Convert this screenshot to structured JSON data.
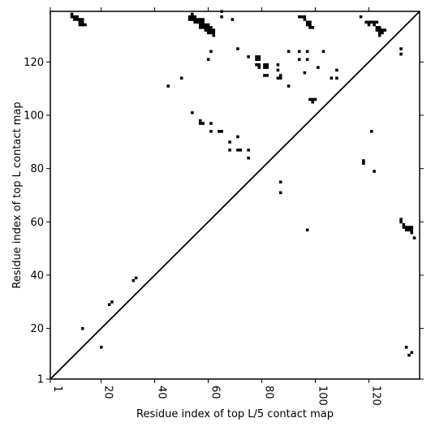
{
  "chart_data": {
    "type": "scatter",
    "xlabel": "Residue index of top L/5 contact map",
    "ylabel": "Residue index of top L contact map",
    "xlim": [
      1,
      139
    ],
    "ylim": [
      1,
      139
    ],
    "x_ticks": [
      1,
      20,
      40,
      60,
      80,
      100,
      120
    ],
    "y_ticks": [
      1,
      20,
      40,
      60,
      80,
      100,
      120
    ],
    "grid": false,
    "diagonal": true,
    "series": [
      {
        "marker": "square",
        "color": "#000000",
        "points": [
          [
            9,
            138
          ],
          [
            9,
            137
          ],
          [
            10,
            137
          ],
          [
            10,
            136
          ],
          [
            11,
            137
          ],
          [
            11,
            136
          ],
          [
            12,
            136
          ],
          [
            12,
            135
          ],
          [
            13,
            136
          ],
          [
            13,
            135
          ],
          [
            12,
            134
          ],
          [
            13,
            134
          ],
          [
            14,
            134
          ],
          [
            54,
            138
          ],
          [
            53,
            137
          ],
          [
            54,
            137
          ],
          [
            55,
            137
          ],
          [
            53,
            136
          ],
          [
            54,
            136
          ],
          [
            55,
            136
          ],
          [
            56,
            136
          ],
          [
            57,
            136
          ],
          [
            58,
            136
          ],
          [
            55,
            135
          ],
          [
            56,
            135
          ],
          [
            57,
            135
          ],
          [
            58,
            135
          ],
          [
            57,
            134
          ],
          [
            58,
            134
          ],
          [
            59,
            134
          ],
          [
            60,
            134
          ],
          [
            57,
            133
          ],
          [
            58,
            133
          ],
          [
            59,
            133
          ],
          [
            60,
            133
          ],
          [
            61,
            133
          ],
          [
            59,
            132
          ],
          [
            60,
            132
          ],
          [
            61,
            132
          ],
          [
            62,
            132
          ],
          [
            60,
            131
          ],
          [
            61,
            131
          ],
          [
            62,
            131
          ],
          [
            62,
            130
          ],
          [
            65,
            139
          ],
          [
            65,
            137
          ],
          [
            69,
            136
          ],
          [
            61,
            124
          ],
          [
            60,
            121
          ],
          [
            71,
            125
          ],
          [
            94,
            137
          ],
          [
            95,
            137
          ],
          [
            96,
            137
          ],
          [
            96,
            136
          ],
          [
            97,
            135
          ],
          [
            98,
            135
          ],
          [
            97,
            134
          ],
          [
            98,
            134
          ],
          [
            98,
            133
          ],
          [
            99,
            133
          ],
          [
            90,
            124
          ],
          [
            94,
            124
          ],
          [
            97,
            124
          ],
          [
            103,
            124
          ],
          [
            94,
            121
          ],
          [
            97,
            121
          ],
          [
            96,
            116
          ],
          [
            75,
            122
          ],
          [
            78,
            122
          ],
          [
            79,
            122
          ],
          [
            78,
            121
          ],
          [
            79,
            121
          ],
          [
            78,
            119
          ],
          [
            79,
            119
          ],
          [
            79,
            118
          ],
          [
            81,
            119
          ],
          [
            82,
            119
          ],
          [
            81,
            118
          ],
          [
            82,
            118
          ],
          [
            86,
            119
          ],
          [
            86,
            117
          ],
          [
            81,
            115
          ],
          [
            82,
            115
          ],
          [
            86,
            114
          ],
          [
            87,
            114
          ],
          [
            87,
            115
          ],
          [
            90,
            111
          ],
          [
            101,
            118
          ],
          [
            108,
            117
          ],
          [
            106,
            114
          ],
          [
            108,
            114
          ],
          [
            98,
            106
          ],
          [
            99,
            106
          ],
          [
            100,
            106
          ],
          [
            99,
            105
          ],
          [
            117,
            137
          ],
          [
            119,
            135
          ],
          [
            120,
            135
          ],
          [
            121,
            135
          ],
          [
            122,
            135
          ],
          [
            123,
            135
          ],
          [
            120,
            134
          ],
          [
            122,
            134
          ],
          [
            123,
            133
          ],
          [
            124,
            133
          ],
          [
            123,
            132
          ],
          [
            124,
            132
          ],
          [
            125,
            132
          ],
          [
            126,
            132
          ],
          [
            124,
            131
          ],
          [
            125,
            131
          ],
          [
            124,
            130
          ],
          [
            132,
            125
          ],
          [
            132,
            123
          ],
          [
            45,
            111
          ],
          [
            50,
            114
          ],
          [
            54,
            101
          ],
          [
            57,
            98
          ],
          [
            57,
            97
          ],
          [
            58,
            97
          ],
          [
            61,
            97
          ],
          [
            61,
            94
          ],
          [
            64,
            94
          ],
          [
            65,
            94
          ],
          [
            71,
            92
          ],
          [
            68,
            90
          ],
          [
            68,
            87
          ],
          [
            71,
            87
          ],
          [
            72,
            87
          ],
          [
            75,
            87
          ],
          [
            75,
            84
          ],
          [
            118,
            83
          ],
          [
            118,
            82
          ],
          [
            121,
            94
          ],
          [
            122,
            79
          ],
          [
            87,
            75
          ],
          [
            87,
            71
          ],
          [
            97,
            57
          ],
          [
            132,
            61
          ],
          [
            132,
            60
          ],
          [
            133,
            59
          ],
          [
            133,
            58
          ],
          [
            134,
            58
          ],
          [
            135,
            58
          ],
          [
            136,
            58
          ],
          [
            134,
            57
          ],
          [
            135,
            57
          ],
          [
            136,
            57
          ],
          [
            136,
            56
          ],
          [
            137,
            54
          ],
          [
            134,
            13
          ],
          [
            136,
            11
          ],
          [
            135,
            10
          ],
          [
            13,
            20
          ],
          [
            20,
            13
          ],
          [
            23,
            29
          ],
          [
            24,
            30
          ],
          [
            32,
            38
          ],
          [
            33,
            39
          ]
        ]
      }
    ]
  }
}
